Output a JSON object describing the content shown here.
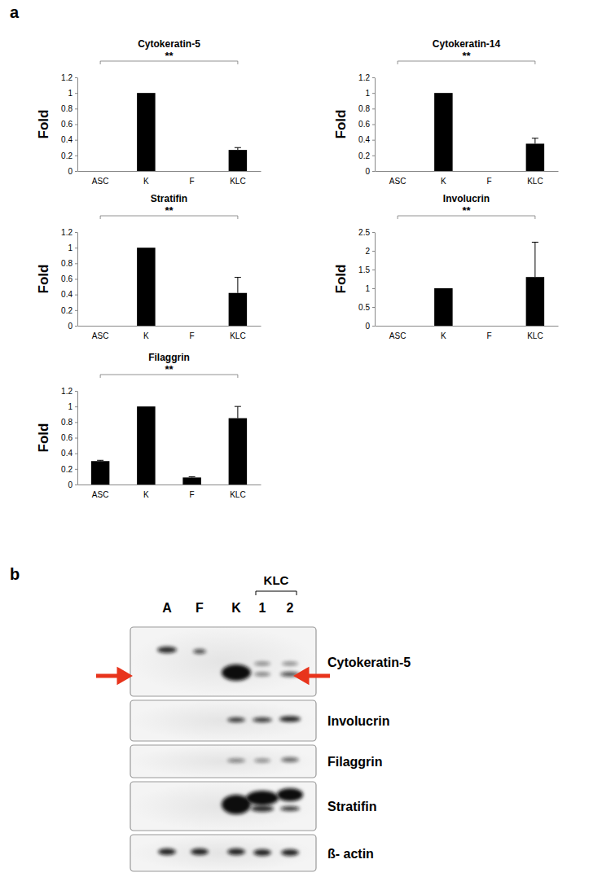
{
  "panel_labels": [
    "a",
    "b"
  ],
  "chart_data": [
    {
      "type": "bar",
      "title": "Cytokeratin-5",
      "y_label": "Fold",
      "color": "#000000",
      "categories": [
        "ASC",
        "K",
        "F",
        "KLC"
      ],
      "values": [
        0,
        1,
        0,
        0.27
      ],
      "errors": [
        null,
        null,
        null,
        0.03
      ],
      "ylim": [
        0,
        1.2
      ],
      "yticks": [
        0,
        0.2,
        0.4,
        0.6,
        0.8,
        1,
        1.2
      ],
      "annotations": [
        {
          "text": "**",
          "from": "ASC",
          "to": "KLC"
        }
      ]
    },
    {
      "type": "bar",
      "title": "Cytokeratin-14",
      "y_label": "Fold",
      "color": "#000000",
      "categories": [
        "ASC",
        "K",
        "F",
        "KLC"
      ],
      "values": [
        0,
        1,
        0,
        0.35
      ],
      "errors": [
        null,
        null,
        null,
        0.07
      ],
      "ylim": [
        0,
        1.2
      ],
      "yticks": [
        0,
        0.2,
        0.4,
        0.6,
        0.8,
        1,
        1.2
      ],
      "annotations": [
        {
          "text": "**",
          "from": "ASC",
          "to": "KLC"
        }
      ]
    },
    {
      "type": "bar",
      "title": "Stratifin",
      "y_label": "Fold",
      "color": "#000000",
      "categories": [
        "ASC",
        "K",
        "F",
        "KLC"
      ],
      "values": [
        0,
        1,
        0,
        0.42
      ],
      "errors": [
        null,
        null,
        null,
        0.2
      ],
      "ylim": [
        0,
        1.2
      ],
      "yticks": [
        0,
        0.2,
        0.4,
        0.6,
        0.8,
        1,
        1.2
      ],
      "annotations": [
        {
          "text": "**",
          "from": "ASC",
          "to": "KLC"
        }
      ]
    },
    {
      "type": "bar",
      "title": "Involucrin",
      "y_label": "Fold",
      "color": "#000000",
      "categories": [
        "ASC",
        "K",
        "F",
        "KLC"
      ],
      "values": [
        0,
        1,
        0,
        1.3
      ],
      "errors": [
        null,
        null,
        null,
        0.93
      ],
      "ylim": [
        0,
        2.5
      ],
      "yticks": [
        0,
        0.5,
        1,
        1.5,
        2,
        2.5
      ],
      "annotations": [
        {
          "text": "**",
          "from": "ASC",
          "to": "KLC"
        }
      ]
    },
    {
      "type": "bar",
      "title": "Filaggrin",
      "y_label": "Fold",
      "color": "#000000",
      "categories": [
        "ASC",
        "K",
        "F",
        "KLC"
      ],
      "values": [
        0.3,
        1,
        0.09,
        0.85
      ],
      "errors": [
        0.01,
        null,
        0.01,
        0.15
      ],
      "ylim": [
        0,
        1.2
      ],
      "yticks": [
        0,
        0.2,
        0.4,
        0.6,
        0.8,
        1,
        1.2
      ],
      "annotations": [
        {
          "text": "**",
          "from": "ASC",
          "to": "KLC"
        }
      ]
    }
  ],
  "blot": {
    "lanes": [
      "A",
      "F",
      "K",
      "1",
      "2"
    ],
    "group": "KLC",
    "rows": [
      "Cytokeratin-5",
      "Involucrin",
      "Filaggrin",
      "Stratifin",
      "ß- actin"
    ]
  }
}
